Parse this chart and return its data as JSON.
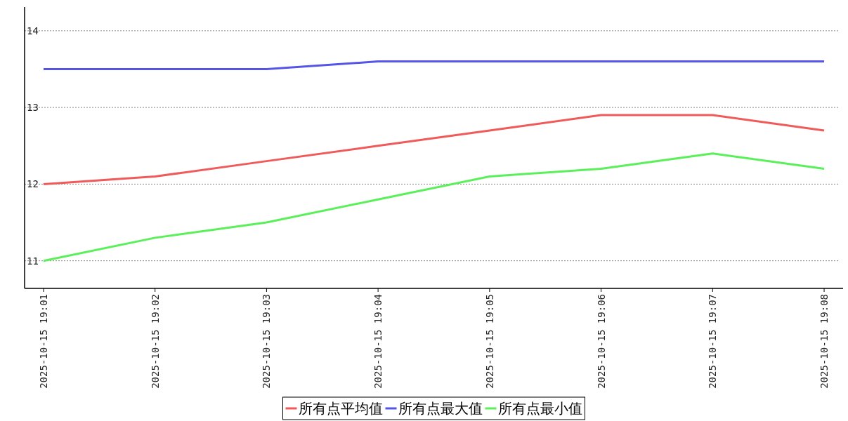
{
  "chart_data": {
    "type": "line",
    "categories": [
      "2025-10-15 19:01",
      "2025-10-15 19:02",
      "2025-10-15 19:03",
      "2025-10-15 19:04",
      "2025-10-15 19:05",
      "2025-10-15 19:06",
      "2025-10-15 19:07",
      "2025-10-15 19:08"
    ],
    "series": [
      {
        "name": "所有点平均值",
        "color": "#f05a5a",
        "values": [
          12.0,
          12.1,
          12.3,
          12.5,
          12.7,
          12.9,
          12.9,
          12.7
        ]
      },
      {
        "name": "所有点最大值",
        "color": "#5555e6",
        "values": [
          13.5,
          13.5,
          13.5,
          13.6,
          13.6,
          13.6,
          13.6,
          13.6
        ]
      },
      {
        "name": "所有点最小值",
        "color": "#5af05a",
        "values": [
          11.0,
          11.3,
          11.5,
          11.8,
          12.1,
          12.2,
          12.4,
          12.2
        ]
      }
    ],
    "ylim": [
      10.64,
      14.31
    ],
    "yticks": [
      11,
      12,
      13,
      14
    ],
    "grid": "y",
    "legend": "bottom"
  }
}
